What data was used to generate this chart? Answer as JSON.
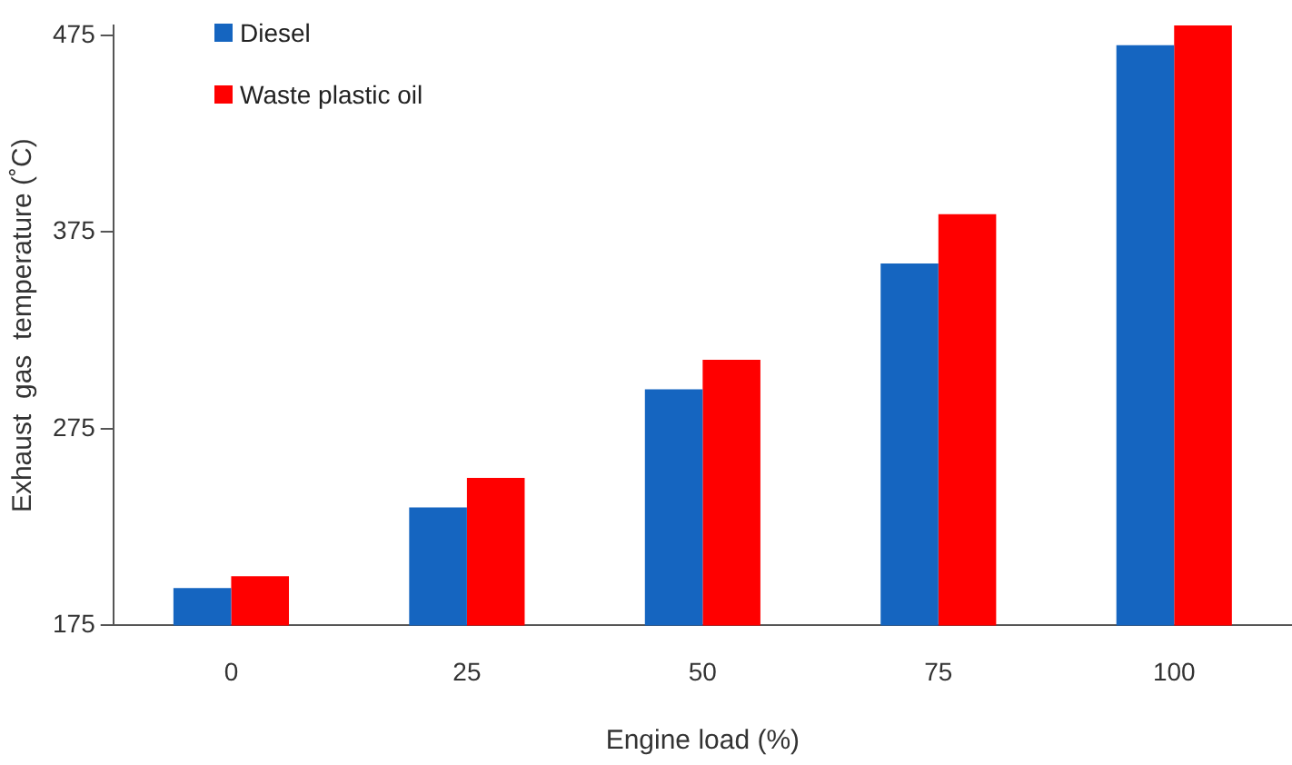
{
  "chart_data": {
    "type": "bar",
    "xlabel": "Engine load (%)",
    "ylabel": "Exhaust  gas  temperature (˚C)",
    "categories": [
      "0",
      "25",
      "50",
      "75",
      "100"
    ],
    "series": [
      {
        "name": "Diesel",
        "color": "#1565c0",
        "values": [
          194,
          235,
          295,
          359,
          470
        ]
      },
      {
        "name": "Waste plastic oil",
        "color": "#ff0000",
        "values": [
          200,
          250,
          310,
          384,
          480
        ]
      }
    ],
    "ylim": [
      175,
      480
    ],
    "yticks": [
      175,
      275,
      375,
      475
    ],
    "grid": false,
    "legend": "top left"
  }
}
